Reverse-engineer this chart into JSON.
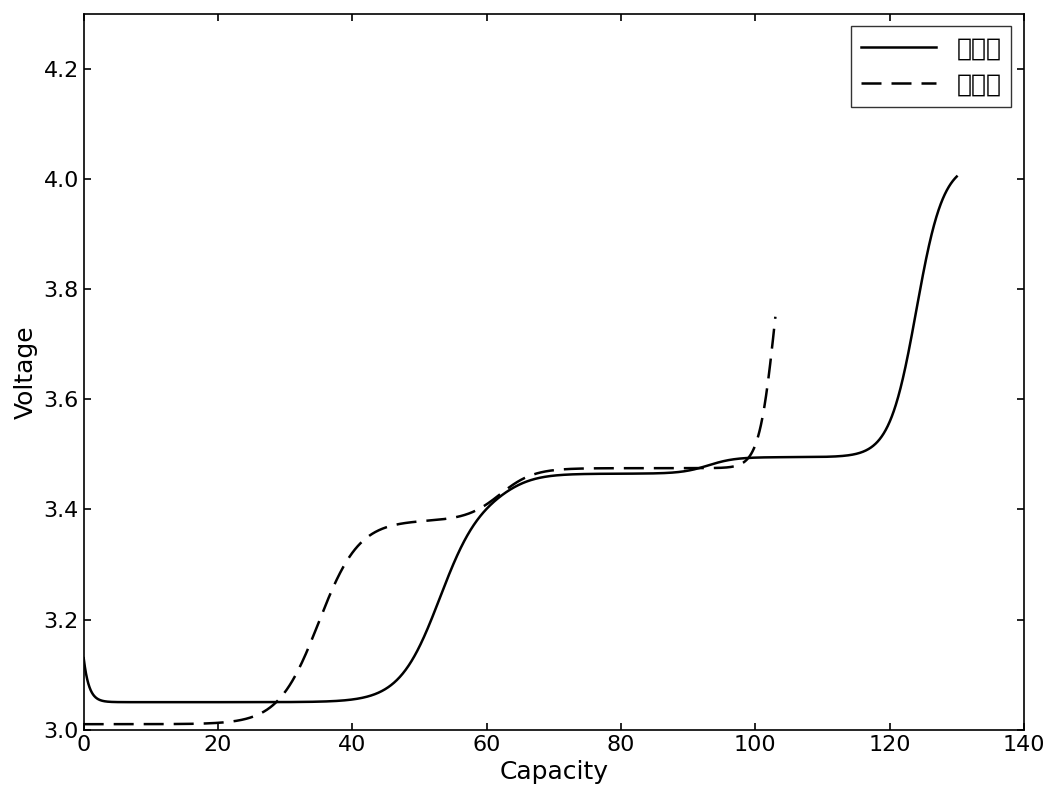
{
  "title": "",
  "xlabel": "Capacity",
  "ylabel": "Voltage",
  "xlim": [
    0,
    140
  ],
  "ylim": [
    3.0,
    4.3
  ],
  "xticks": [
    0,
    20,
    40,
    60,
    80,
    100,
    120,
    140
  ],
  "yticks": [
    3.0,
    3.2,
    3.4,
    3.6,
    3.8,
    4.0,
    4.2
  ],
  "legend_labels": [
    "搼置前",
    "搼置后"
  ],
  "line1_color": "#000000",
  "line2_color": "#000000",
  "background_color": "#ffffff",
  "fontsize_labels": 18,
  "fontsize_ticks": 16,
  "fontsize_legend": 18
}
